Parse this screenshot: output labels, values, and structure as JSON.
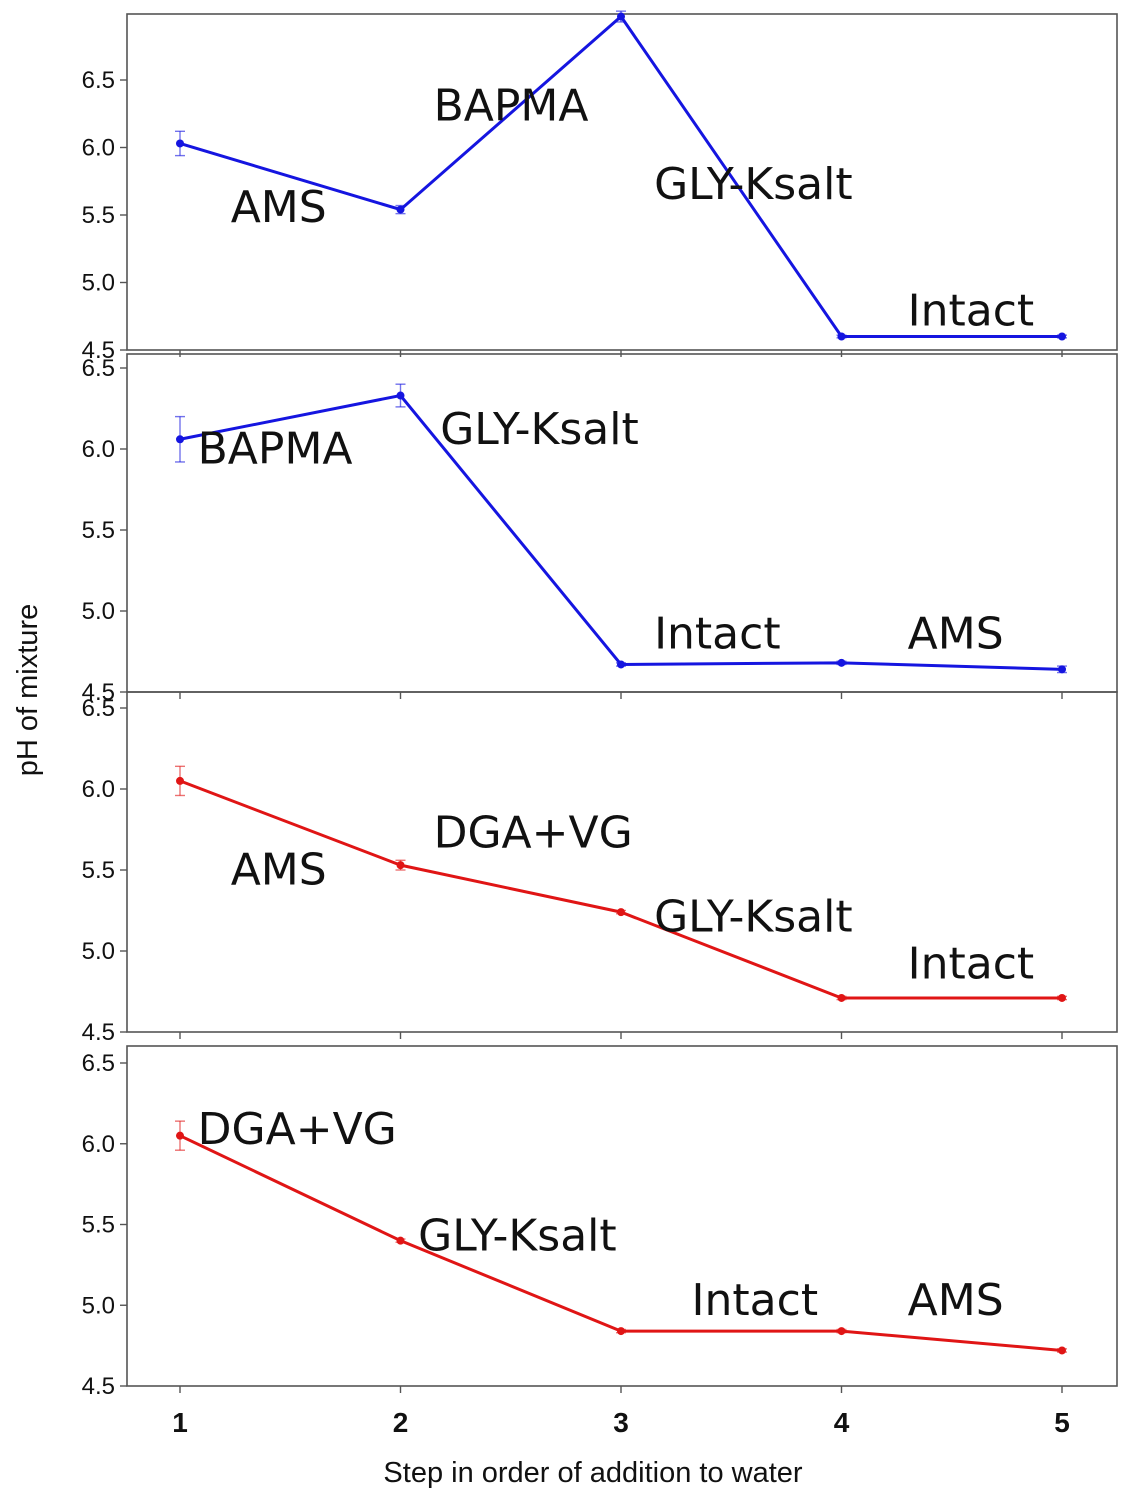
{
  "chart_data": {
    "type": "line",
    "xlabel": "Step in order of addition to water",
    "ylabel": "pH of mixture",
    "x": [
      1,
      2,
      3,
      4,
      5
    ],
    "xticks": [
      "1",
      "2",
      "3",
      "4",
      "5"
    ],
    "grid": false,
    "panels": [
      {
        "color": "#1515e0",
        "ylim": [
          4.5,
          6.97
        ],
        "yticks": [
          "4.5",
          "5.0",
          "5.5",
          "6.0",
          "6.5"
        ],
        "values": [
          6.03,
          5.54,
          6.97,
          4.6,
          4.6
        ],
        "errors": [
          0.09,
          0.03,
          0.04,
          0.01,
          0.01
        ],
        "annotations": [
          {
            "text": "AMS",
            "x": 1.23,
            "y": 5.45
          },
          {
            "text": "BAPMA",
            "x": 2.15,
            "y": 6.2
          },
          {
            "text": "GLY-Ksalt",
            "x": 3.15,
            "y": 5.62
          },
          {
            "text": "Intact",
            "x": 4.3,
            "y": 4.68
          }
        ]
      },
      {
        "color": "#1515e0",
        "ylim": [
          4.5,
          6.5
        ],
        "yticks": [
          "4.5",
          "5.0",
          "5.5",
          "6.0",
          "6.5"
        ],
        "values": [
          6.06,
          6.33,
          4.67,
          4.68,
          4.64
        ],
        "errors": [
          0.14,
          0.07,
          0.01,
          0.01,
          0.02
        ],
        "annotations": [
          {
            "text": "BAPMA",
            "x": 1.08,
            "y": 5.91
          },
          {
            "text": "GLY-Ksalt",
            "x": 2.18,
            "y": 6.03
          },
          {
            "text": "Intact",
            "x": 3.15,
            "y": 4.77
          },
          {
            "text": "AMS",
            "x": 4.3,
            "y": 4.77
          }
        ]
      },
      {
        "color": "#e01515",
        "ylim": [
          4.5,
          6.5
        ],
        "yticks": [
          "4.5",
          "5.0",
          "5.5",
          "6.0",
          "6.5"
        ],
        "values": [
          6.05,
          5.53,
          5.24,
          4.71,
          4.71
        ],
        "errors": [
          0.09,
          0.03,
          0.01,
          0.01,
          0.01
        ],
        "annotations": [
          {
            "text": "AMS",
            "x": 1.23,
            "y": 5.41
          },
          {
            "text": "DGA+VG",
            "x": 2.15,
            "y": 5.64
          },
          {
            "text": "GLY-Ksalt",
            "x": 3.15,
            "y": 5.12
          },
          {
            "text": "Intact",
            "x": 4.3,
            "y": 4.83
          }
        ]
      },
      {
        "color": "#e01515",
        "ylim": [
          4.5,
          6.5
        ],
        "yticks": [
          "4.5",
          "5.0",
          "5.5",
          "6.0",
          "6.5"
        ],
        "values": [
          6.05,
          5.4,
          4.84,
          4.84,
          4.72
        ],
        "errors": [
          0.09,
          0.01,
          0.01,
          0.01,
          0.01
        ],
        "annotations": [
          {
            "text": "DGA+VG",
            "x": 1.08,
            "y": 6.0
          },
          {
            "text": "GLY-Ksalt",
            "x": 2.08,
            "y": 5.34
          },
          {
            "text": "Intact",
            "x": 3.32,
            "y": 4.94
          },
          {
            "text": "AMS",
            "x": 4.3,
            "y": 4.94
          }
        ]
      }
    ]
  }
}
